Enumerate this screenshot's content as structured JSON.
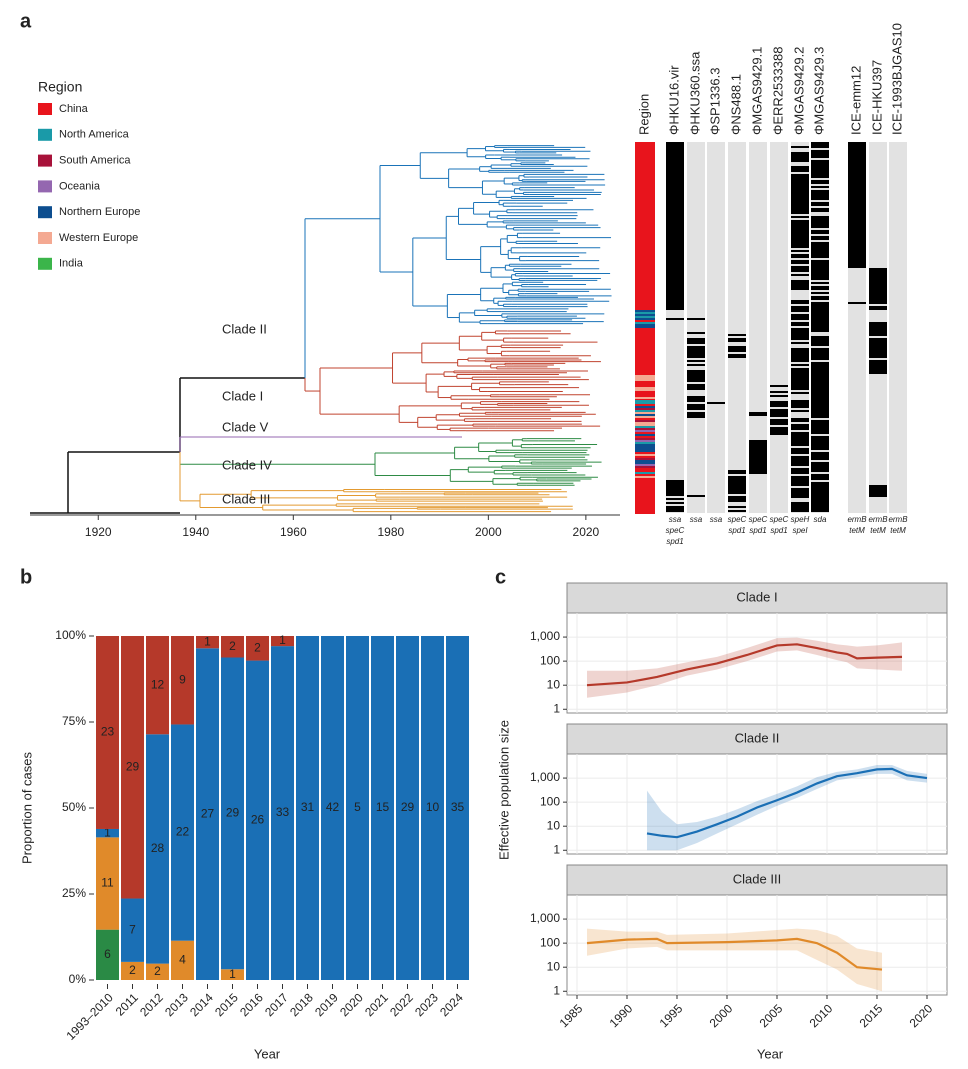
{
  "chart_data": [
    {
      "type": "tree",
      "panel": "a",
      "xlim": [
        1906,
        2027
      ],
      "xticks": [
        1920,
        1940,
        1960,
        1980,
        2000,
        2020
      ],
      "legend": {
        "title": "Region",
        "items": [
          {
            "name": "China",
            "color": "#e8141c"
          },
          {
            "name": "North America",
            "color": "#1a9aa8"
          },
          {
            "name": "South America",
            "color": "#a8123a"
          },
          {
            "name": "Oceania",
            "color": "#9467b0"
          },
          {
            "name": "Northern Europe",
            "color": "#0d4e8f"
          },
          {
            "name": "Western Europe",
            "color": "#f4a992"
          },
          {
            "name": "India",
            "color": "#3bb54a"
          }
        ]
      },
      "clades": [
        {
          "name": "Clade II",
          "color": "#1a73b8"
        },
        {
          "name": "Clade I",
          "color": "#c0432f"
        },
        {
          "name": "Clade V",
          "color": "#9467b0"
        },
        {
          "name": "Clade IV",
          "color": "#2e8b45"
        },
        {
          "name": "Clade III",
          "color": "#e39a30"
        }
      ],
      "columns": [
        {
          "name": "Region"
        },
        {
          "name": "ΦHKU16.vir",
          "genes": [
            "ssa",
            "speC",
            "spd1"
          ]
        },
        {
          "name": "ΦHKU360.ssa",
          "genes": [
            "ssa"
          ]
        },
        {
          "name": "ΦSP1336.3",
          "genes": [
            "ssa"
          ]
        },
        {
          "name": "ΦNS488.1",
          "genes": [
            "speC",
            "spd1"
          ]
        },
        {
          "name": "ΦMGAS9429.1",
          "genes": [
            "speC",
            "spd1"
          ]
        },
        {
          "name": "ΦERR2533388",
          "genes": [
            "speC",
            "spd1"
          ]
        },
        {
          "name": "ΦMGAS9429.2",
          "genes": [
            "speH",
            "speI"
          ]
        },
        {
          "name": "ΦMGAS9429.3",
          "genes": [
            "sda"
          ]
        },
        {
          "name": "ICE-emm12",
          "genes": [
            "ermB",
            "tetM"
          ]
        },
        {
          "name": "ICE-HKU397",
          "genes": [
            "ermB",
            "tetM"
          ]
        },
        {
          "name": "ICE-1993BJGAS10",
          "genes": [
            "ermB",
            "tetM"
          ]
        }
      ]
    },
    {
      "type": "stacked_bar",
      "panel": "b",
      "xlabel": "Year",
      "ylabel": "Proportion of cases",
      "categories": [
        "1993–2010",
        "2011",
        "2012",
        "2013",
        "2014",
        "2015",
        "2016",
        "2017",
        "2018",
        "2019",
        "2020",
        "2021",
        "2022",
        "2023",
        "2024"
      ],
      "ylim": [
        0,
        100
      ],
      "yticks": [
        {
          "value": 0,
          "label": "0%"
        },
        {
          "value": 25,
          "label": "25%"
        },
        {
          "value": 50,
          "label": "50%"
        },
        {
          "value": 75,
          "label": "75%"
        },
        {
          "value": 100,
          "label": "100%"
        }
      ],
      "series": [
        {
          "color": "#2a8a45",
          "values": [
            6,
            null,
            null,
            null,
            null,
            null,
            null,
            null,
            null,
            null,
            null,
            null,
            null,
            null,
            null
          ]
        },
        {
          "color": "#e08a2a",
          "values": [
            11,
            2,
            2,
            4,
            null,
            1,
            null,
            null,
            null,
            null,
            null,
            null,
            null,
            null,
            null
          ]
        },
        {
          "color": "#1a6fb5",
          "values": [
            1,
            7,
            28,
            22,
            27,
            29,
            26,
            33,
            31,
            42,
            5,
            15,
            29,
            10,
            35
          ]
        },
        {
          "color": "#b5392a",
          "values": [
            23,
            29,
            12,
            9,
            1,
            2,
            2,
            1,
            null,
            null,
            null,
            null,
            null,
            null,
            null
          ]
        }
      ]
    },
    {
      "type": "line",
      "panel": "c",
      "title": "Clade I",
      "xlim": [
        1984,
        2022
      ],
      "ylim": [
        0.7,
        10000
      ],
      "log_y": true,
      "grid": true,
      "yticks": [
        1,
        10,
        100,
        {
          "value": 1000,
          "label": "1,000"
        }
      ],
      "series": [
        {
          "color": "#b5392a",
          "x": [
            1986,
            1990,
            1993,
            1996,
            1999,
            2002,
            2005,
            2007,
            2009,
            2011,
            2012,
            2013,
            2015,
            2017.5
          ],
          "values": [
            10,
            13,
            22,
            45,
            80,
            180,
            450,
            500,
            350,
            230,
            200,
            130,
            140,
            150
          ],
          "lower": [
            3,
            5,
            10,
            25,
            45,
            100,
            250,
            280,
            180,
            110,
            90,
            50,
            45,
            40
          ],
          "upper": [
            40,
            40,
            50,
            90,
            150,
            350,
            900,
            950,
            700,
            500,
            450,
            400,
            450,
            600
          ]
        }
      ]
    },
    {
      "type": "line",
      "title": "Clade II",
      "ylabel": "Effective population size",
      "xlim": [
        1984,
        2022
      ],
      "ylim": [
        0.7,
        10000
      ],
      "log_y": true,
      "grid": true,
      "yticks": [
        1,
        10,
        100,
        {
          "value": 1000,
          "label": "1,000"
        }
      ],
      "series": [
        {
          "color": "#1a6fb5",
          "x": [
            1992,
            1993.5,
            1995,
            1997,
            1999,
            2001,
            2003,
            2005,
            2007,
            2009,
            2011,
            2013,
            2015,
            2016.5,
            2018,
            2020
          ],
          "values": [
            5,
            4,
            3.5,
            6,
            12,
            25,
            60,
            120,
            250,
            600,
            1200,
            1600,
            2300,
            2400,
            1300,
            1000
          ],
          "lower": [
            1,
            1,
            1,
            2,
            5,
            12,
            30,
            70,
            150,
            350,
            800,
            1100,
            1500,
            1500,
            800,
            650
          ],
          "upper": [
            300,
            40,
            12,
            15,
            25,
            50,
            110,
            220,
            450,
            1100,
            1800,
            2300,
            3500,
            3500,
            2000,
            1500
          ]
        }
      ]
    },
    {
      "type": "line",
      "title": "Clade III",
      "xlabel": "Year",
      "xlim": [
        1984,
        2022
      ],
      "ylim": [
        0.7,
        10000
      ],
      "log_y": true,
      "grid": true,
      "xticks": [
        1985,
        1990,
        1995,
        2000,
        2005,
        2010,
        2015,
        2020
      ],
      "yticks": [
        1,
        10,
        100,
        {
          "value": 1000,
          "label": "1,000"
        }
      ],
      "series": [
        {
          "color": "#e08a2a",
          "x": [
            1986,
            1990,
            1993,
            1994,
            2000,
            2005,
            2007,
            2009,
            2011,
            2013,
            2015.5
          ],
          "values": [
            100,
            140,
            150,
            100,
            110,
            130,
            150,
            100,
            40,
            10,
            8
          ],
          "lower": [
            30,
            60,
            70,
            50,
            50,
            50,
            50,
            20,
            8,
            2,
            1
          ],
          "upper": [
            400,
            300,
            300,
            220,
            250,
            350,
            400,
            350,
            200,
            60,
            40
          ]
        }
      ]
    }
  ]
}
